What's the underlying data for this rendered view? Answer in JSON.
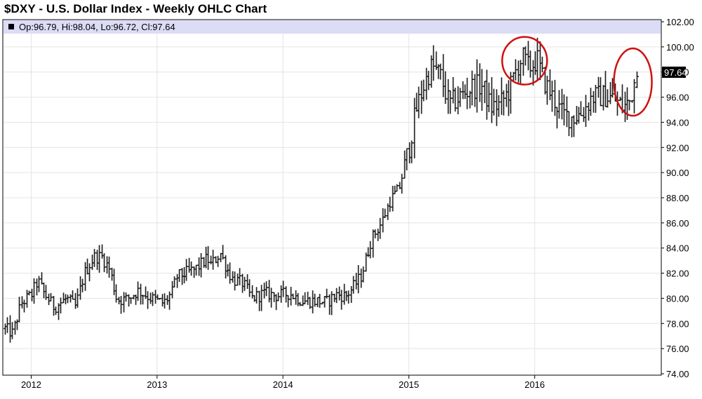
{
  "chart_data": {
    "type": "ohlc",
    "title": "$DXY - U.S. Dollar Index - Weekly OHLC Chart",
    "ohlc_readout": "Op:96.79, Hi:98.04, Lo:96.72, Cl:97.64",
    "last_close": 97.64,
    "last_close_label": "97.64",
    "ylim": [
      74,
      102
    ],
    "y_ticks": [
      "102.00",
      "100.00",
      "98.00",
      "96.00",
      "94.00",
      "92.00",
      "90.00",
      "88.00",
      "86.00",
      "84.00",
      "82.00",
      "80.00",
      "78.00",
      "76.00",
      "74.00"
    ],
    "y_tick_values": [
      102,
      100,
      98,
      96,
      94,
      92,
      90,
      88,
      86,
      84,
      82,
      80,
      78,
      76,
      74
    ],
    "x_ticks": [
      "2012",
      "2013",
      "2014",
      "2015",
      "2016"
    ],
    "x_tick_dates": [
      2012.0,
      2013.0,
      2014.0,
      2015.0,
      2016.0
    ],
    "x_range": [
      2011.78,
      2017.0
    ],
    "grid": true,
    "annotations": [
      {
        "shape": "ellipse",
        "color": "#d01010",
        "center_date": 2015.92,
        "center_value": 98.9
      },
      {
        "shape": "ellipse",
        "color": "#d01010",
        "center_date": 2016.78,
        "center_value": 97.2
      }
    ],
    "anchors": [
      [
        2011.79,
        77.6
      ],
      [
        2011.85,
        77.2
      ],
      [
        2011.92,
        79.6
      ],
      [
        2012.0,
        80.3
      ],
      [
        2012.05,
        81.4
      ],
      [
        2012.1,
        80.4
      ],
      [
        2012.18,
        79.3
      ],
      [
        2012.28,
        80.0
      ],
      [
        2012.35,
        79.3
      ],
      [
        2012.42,
        82.0
      ],
      [
        2012.5,
        83.3
      ],
      [
        2012.56,
        83.3
      ],
      [
        2012.62,
        82.3
      ],
      [
        2012.68,
        79.9
      ],
      [
        2012.75,
        79.9
      ],
      [
        2012.85,
        80.6
      ],
      [
        2012.95,
        80.0
      ],
      [
        2013.05,
        79.6
      ],
      [
        2013.12,
        80.5
      ],
      [
        2013.15,
        81.7
      ],
      [
        2013.3,
        82.3
      ],
      [
        2013.4,
        83.2
      ],
      [
        2013.42,
        82.6
      ],
      [
        2013.5,
        83.6
      ],
      [
        2013.55,
        82.4
      ],
      [
        2013.6,
        81.5
      ],
      [
        2013.68,
        81.2
      ],
      [
        2013.75,
        80.0
      ],
      [
        2013.85,
        80.4
      ],
      [
        2013.95,
        80.2
      ],
      [
        2014.05,
        80.4
      ],
      [
        2014.15,
        79.8
      ],
      [
        2014.25,
        79.8
      ],
      [
        2014.35,
        79.7
      ],
      [
        2014.42,
        80.3
      ],
      [
        2014.5,
        80.2
      ],
      [
        2014.55,
        80.8
      ],
      [
        2014.62,
        81.8
      ],
      [
        2014.7,
        84.7
      ],
      [
        2014.78,
        86.0
      ],
      [
        2014.85,
        87.8
      ],
      [
        2014.92,
        88.7
      ],
      [
        2015.0,
        92.0
      ],
      [
        2015.05,
        94.8
      ],
      [
        2015.12,
        97.0
      ],
      [
        2015.18,
        98.5
      ],
      [
        2015.25,
        97.7
      ],
      [
        2015.32,
        95.4
      ],
      [
        2015.4,
        96.0
      ],
      [
        2015.5,
        96.8
      ],
      [
        2015.58,
        96.9
      ],
      [
        2015.65,
        95.2
      ],
      [
        2015.72,
        95.4
      ],
      [
        2015.8,
        96.6
      ],
      [
        2015.86,
        98.4
      ],
      [
        2015.9,
        99.2
      ],
      [
        2015.95,
        98.3
      ],
      [
        2016.02,
        99.0
      ],
      [
        2016.05,
        97.8
      ],
      [
        2016.1,
        96.7
      ],
      [
        2016.15,
        95.8
      ],
      [
        2016.22,
        94.6
      ],
      [
        2016.3,
        94.4
      ],
      [
        2016.38,
        94.8
      ],
      [
        2016.45,
        96.0
      ],
      [
        2016.55,
        96.1
      ],
      [
        2016.62,
        95.9
      ],
      [
        2016.7,
        95.2
      ],
      [
        2016.75,
        95.6
      ],
      [
        2016.8,
        97.6
      ]
    ],
    "colors": {
      "bars": "#1a1a1a",
      "header_band": "#dcdcf6",
      "annotation": "#d01010",
      "grid": "#e4e4e4"
    }
  }
}
